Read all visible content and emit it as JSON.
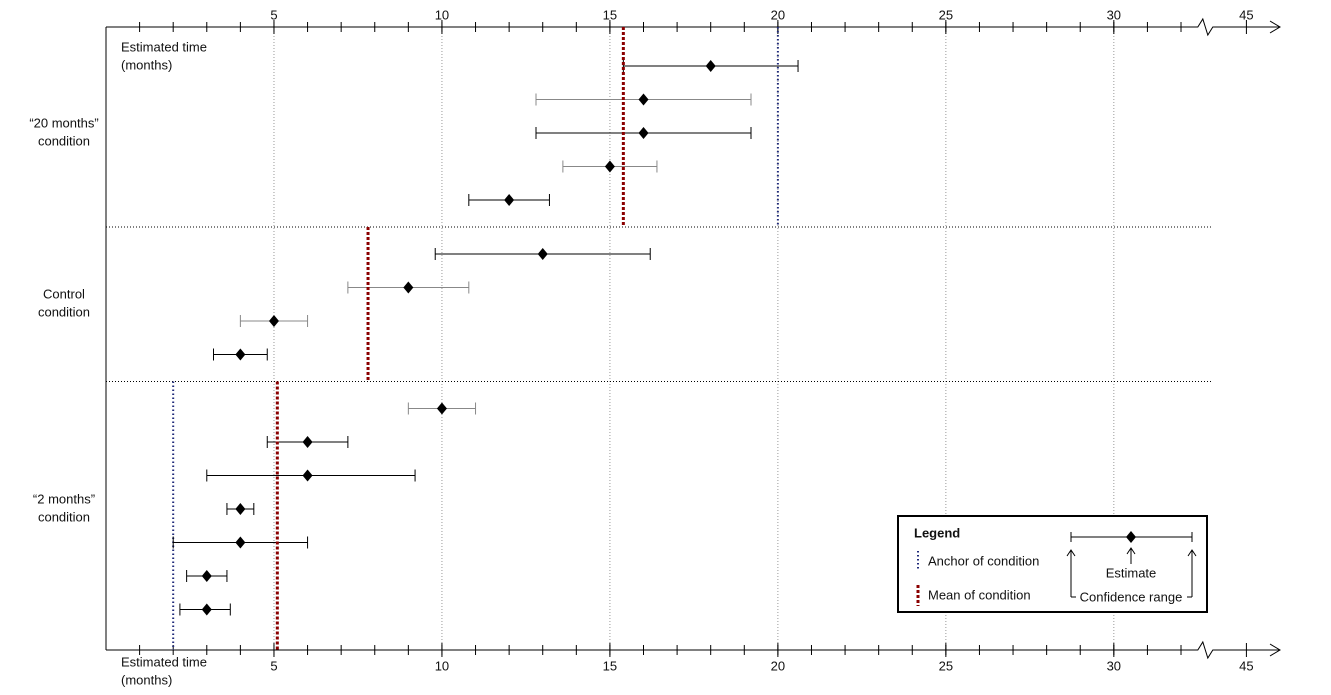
{
  "chart_data": {
    "type": "errorbar",
    "x_label": [
      "Estimated time",
      "(months)"
    ],
    "xlim": [
      0,
      46
    ],
    "axis_break": [
      32.5,
      44
    ],
    "xticks": [
      5,
      10,
      15,
      20,
      25,
      30,
      45
    ],
    "grid": true,
    "anchor_color": "#1f2a7a",
    "mean_color": "#8b0000",
    "groups": [
      {
        "label": [
          "“20 months”",
          "condition"
        ],
        "anchor": 20,
        "mean": 15.4,
        "rows": [
          {
            "value": 18,
            "lower": 15.4,
            "upper": 20.6,
            "color": "#000000"
          },
          {
            "value": 16,
            "lower": 12.8,
            "upper": 19.2,
            "color": "#888888"
          },
          {
            "value": 16,
            "lower": 12.8,
            "upper": 19.2,
            "color": "#000000"
          },
          {
            "value": 15,
            "lower": 13.6,
            "upper": 16.4,
            "color": "#888888"
          },
          {
            "value": 12,
            "lower": 10.8,
            "upper": 13.2,
            "color": "#000000"
          }
        ]
      },
      {
        "label": [
          "Control",
          "condition"
        ],
        "mean": 7.8,
        "rows": [
          {
            "value": 13,
            "lower": 9.8,
            "upper": 16.2,
            "color": "#000000"
          },
          {
            "value": 9,
            "lower": 7.2,
            "upper": 10.8,
            "color": "#888888"
          },
          {
            "value": 5,
            "lower": 4,
            "upper": 6,
            "color": "#888888"
          },
          {
            "value": 4,
            "lower": 3.2,
            "upper": 4.8,
            "color": "#000000"
          }
        ]
      },
      {
        "label": [
          "“2 months”",
          "condition"
        ],
        "anchor": 2,
        "mean": 5.1,
        "rows": [
          {
            "value": 10,
            "lower": 9,
            "upper": 11,
            "color": "#888888"
          },
          {
            "value": 6,
            "lower": 4.8,
            "upper": 7.2,
            "color": "#000000"
          },
          {
            "value": 6,
            "lower": 3,
            "upper": 9.2,
            "color": "#000000"
          },
          {
            "value": 4,
            "lower": 3.6,
            "upper": 4.4,
            "color": "#000000"
          },
          {
            "value": 4,
            "lower": 2,
            "upper": 6,
            "color": "#000000"
          },
          {
            "value": 3,
            "lower": 2.4,
            "upper": 3.6,
            "color": "#000000"
          },
          {
            "value": 3,
            "lower": 2.2,
            "upper": 3.7,
            "color": "#000000"
          }
        ]
      }
    ],
    "legend": {
      "title": "Legend",
      "anchor": "Anchor of condition",
      "mean": "Mean of condition",
      "estimate": "Estimate",
      "confidence": "Confidence range"
    }
  }
}
